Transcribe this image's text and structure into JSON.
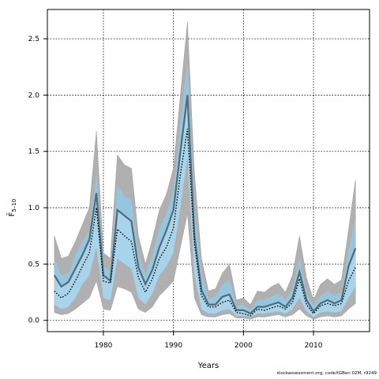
{
  "chart_data": {
    "type": "area",
    "xlabel": "Years",
    "ylabel": "F̄",
    "ylabel_subscript": "5–10",
    "xlim": [
      1972,
      2018
    ],
    "ylim": [
      -0.1,
      2.76
    ],
    "grid": true,
    "x_ticks": [
      1980,
      1990,
      2000,
      2010
    ],
    "y_ticks": [
      0.0,
      0.5,
      1.0,
      1.5,
      2.0,
      2.5
    ],
    "x_tick_labels": [
      "1980",
      "1990",
      "2000",
      "2010"
    ],
    "y_tick_labels": [
      "0.0",
      "0.5",
      "1.0",
      "1.5",
      "2.0",
      "2.5"
    ],
    "colors": {
      "outer_band": "#b0b0b0",
      "inner_band": "#92c8e2",
      "inner_band_lower": "#a6d6ee",
      "median_line": "#536a78",
      "point_line": "#000000"
    },
    "x": [
      1973,
      1974,
      1975,
      1976,
      1977,
      1978,
      1979,
      1980,
      1981,
      1982,
      1983,
      1984,
      1985,
      1986,
      1987,
      1988,
      1989,
      1990,
      1991,
      1992,
      1993,
      1994,
      1995,
      1996,
      1997,
      1998,
      1999,
      2000,
      2001,
      2002,
      2003,
      2004,
      2005,
      2006,
      2007,
      2008,
      2009,
      2010,
      2011,
      2012,
      2013,
      2014,
      2015,
      2016
    ],
    "series": [
      {
        "role": "outer_upper",
        "values": [
          0.75,
          0.55,
          0.57,
          0.7,
          0.85,
          1.0,
          1.68,
          0.6,
          0.55,
          1.47,
          1.38,
          1.35,
          0.75,
          0.5,
          0.72,
          0.98,
          1.12,
          1.35,
          2.0,
          2.65,
          1.3,
          0.55,
          0.26,
          0.28,
          0.42,
          0.5,
          0.18,
          0.2,
          0.14,
          0.26,
          0.25,
          0.3,
          0.33,
          0.25,
          0.4,
          0.75,
          0.38,
          0.18,
          0.32,
          0.37,
          0.32,
          0.36,
          0.8,
          1.25
        ]
      },
      {
        "role": "outer_lower",
        "values": [
          0.07,
          0.05,
          0.06,
          0.1,
          0.15,
          0.2,
          0.35,
          0.1,
          0.09,
          0.3,
          0.28,
          0.25,
          0.1,
          0.07,
          0.12,
          0.22,
          0.28,
          0.35,
          0.65,
          0.95,
          0.2,
          0.05,
          0.03,
          0.03,
          0.05,
          0.06,
          0.02,
          0.02,
          0.01,
          0.03,
          0.03,
          0.04,
          0.05,
          0.03,
          0.05,
          0.1,
          0.04,
          0.01,
          0.03,
          0.04,
          0.03,
          0.04,
          0.1,
          0.15
        ]
      },
      {
        "role": "inner_upper",
        "values": [
          0.55,
          0.4,
          0.42,
          0.58,
          0.7,
          0.8,
          1.3,
          0.48,
          0.44,
          1.2,
          1.1,
          1.07,
          0.6,
          0.4,
          0.58,
          0.82,
          0.95,
          1.15,
          1.75,
          2.3,
          1.0,
          0.42,
          0.19,
          0.21,
          0.32,
          0.36,
          0.13,
          0.14,
          0.09,
          0.18,
          0.18,
          0.21,
          0.24,
          0.18,
          0.28,
          0.55,
          0.25,
          0.13,
          0.22,
          0.26,
          0.22,
          0.25,
          0.62,
          0.9
        ]
      },
      {
        "role": "inner_lower",
        "values": [
          0.14,
          0.1,
          0.12,
          0.2,
          0.32,
          0.4,
          0.65,
          0.2,
          0.18,
          0.55,
          0.5,
          0.46,
          0.2,
          0.14,
          0.24,
          0.4,
          0.48,
          0.6,
          1.0,
          1.45,
          0.4,
          0.1,
          0.06,
          0.06,
          0.09,
          0.1,
          0.04,
          0.04,
          0.03,
          0.06,
          0.06,
          0.07,
          0.08,
          0.06,
          0.1,
          0.2,
          0.08,
          0.03,
          0.07,
          0.08,
          0.07,
          0.08,
          0.2,
          0.3
        ]
      },
      {
        "role": "median",
        "values": [
          0.4,
          0.3,
          0.34,
          0.46,
          0.58,
          0.72,
          1.13,
          0.4,
          0.35,
          0.98,
          0.93,
          0.88,
          0.47,
          0.32,
          0.45,
          0.65,
          0.8,
          0.98,
          1.5,
          2.0,
          0.75,
          0.27,
          0.14,
          0.14,
          0.21,
          0.23,
          0.09,
          0.09,
          0.06,
          0.12,
          0.12,
          0.14,
          0.16,
          0.12,
          0.2,
          0.43,
          0.18,
          0.08,
          0.15,
          0.18,
          0.15,
          0.18,
          0.48,
          0.64
        ]
      },
      {
        "role": "point",
        "values": [
          0.26,
          0.2,
          0.24,
          0.35,
          0.48,
          0.6,
          1.0,
          0.35,
          0.33,
          0.81,
          0.75,
          0.7,
          0.38,
          0.25,
          0.37,
          0.55,
          0.65,
          0.82,
          1.3,
          1.7,
          0.68,
          0.22,
          0.12,
          0.12,
          0.16,
          0.18,
          0.07,
          0.06,
          0.04,
          0.1,
          0.09,
          0.11,
          0.13,
          0.1,
          0.16,
          0.37,
          0.14,
          0.06,
          0.13,
          0.15,
          0.13,
          0.15,
          0.35,
          0.47
        ]
      }
    ]
  },
  "footer": "stockassessment.org, codeXGBen 02M, r9249"
}
